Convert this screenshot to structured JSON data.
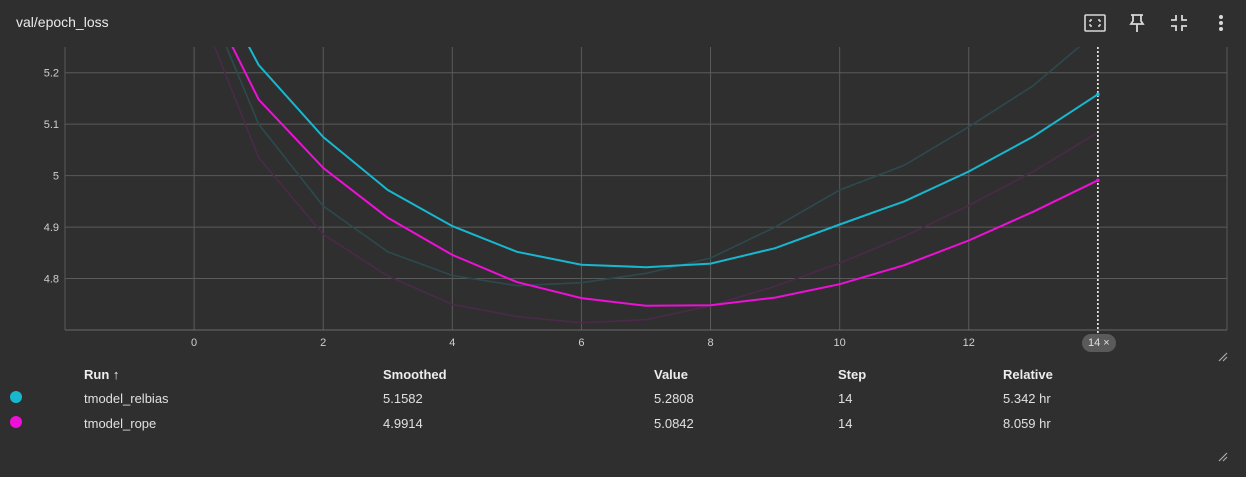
{
  "card": {
    "title": "val/epoch_loss"
  },
  "toolbar": {
    "buttons": [
      {
        "name": "fit-domain-icon"
      },
      {
        "name": "pin-icon"
      },
      {
        "name": "collapse-icon"
      },
      {
        "name": "more-vert-icon"
      }
    ]
  },
  "chart_data": {
    "type": "line",
    "title": "val/epoch_loss",
    "xlabel": "",
    "ylabel": "",
    "xlim": [
      -2,
      16
    ],
    "ylim": [
      4.7,
      5.25
    ],
    "x_ticks": [
      "0",
      "2",
      "4",
      "6",
      "8",
      "10",
      "12"
    ],
    "y_ticks": [
      "4.8",
      "4.9",
      "5",
      "5.1",
      "5.2"
    ],
    "grid": true,
    "cursor_step": 14,
    "series": [
      {
        "name": "tmodel_relbias",
        "color": "#17b8cf",
        "role": "smoothed",
        "x": [
          0,
          1,
          2,
          3,
          4,
          5,
          6,
          7,
          8,
          9,
          10,
          11,
          12,
          13,
          14
        ],
        "values": [
          5.45,
          5.215,
          5.075,
          4.972,
          4.902,
          4.852,
          4.827,
          4.822,
          4.829,
          4.859,
          4.905,
          4.95,
          5.008,
          5.076,
          5.158
        ]
      },
      {
        "name": "tmodel_rope",
        "color": "#ee10d8",
        "role": "smoothed",
        "x": [
          0,
          1,
          2,
          3,
          4,
          5,
          6,
          7,
          8,
          9,
          10,
          11,
          12,
          13,
          14
        ],
        "values": [
          5.4,
          5.148,
          5.015,
          4.918,
          4.846,
          4.793,
          4.762,
          4.747,
          4.748,
          4.763,
          4.789,
          4.826,
          4.874,
          4.93,
          4.991
        ]
      },
      {
        "name": "tmodel_relbias",
        "color": "#2c4a4e",
        "role": "raw",
        "x": [
          0,
          1,
          2,
          3,
          4,
          5,
          6,
          7,
          8,
          9,
          10,
          11,
          12,
          13,
          14
        ],
        "values": [
          5.4,
          5.1,
          4.941,
          4.852,
          4.806,
          4.786,
          4.792,
          4.81,
          4.84,
          4.9,
          4.972,
          5.02,
          5.095,
          5.175,
          5.281
        ]
      },
      {
        "name": "tmodel_rope",
        "color": "#4a2a48",
        "role": "raw",
        "x": [
          0,
          1,
          2,
          3,
          4,
          5,
          6,
          7,
          8,
          9,
          10,
          11,
          12,
          13,
          14
        ],
        "values": [
          5.35,
          5.035,
          4.886,
          4.805,
          4.75,
          4.726,
          4.714,
          4.72,
          4.747,
          4.785,
          4.83,
          4.882,
          4.942,
          5.008,
          5.084
        ]
      }
    ]
  },
  "step_chip": {
    "label": "14",
    "close": "×"
  },
  "table": {
    "headers": {
      "run": "Run ↑",
      "smoothed": "Smoothed",
      "value": "Value",
      "step": "Step",
      "relative": "Relative"
    },
    "rows": [
      {
        "color": "#17b8cf",
        "run": "tmodel_relbias",
        "smoothed": "5.1582",
        "value": "5.2808",
        "step": "14",
        "relative": "5.342 hr"
      },
      {
        "color": "#ee10d8",
        "run": "tmodel_rope",
        "smoothed": "4.9914",
        "value": "5.0842",
        "step": "14",
        "relative": "8.059 hr"
      }
    ]
  }
}
